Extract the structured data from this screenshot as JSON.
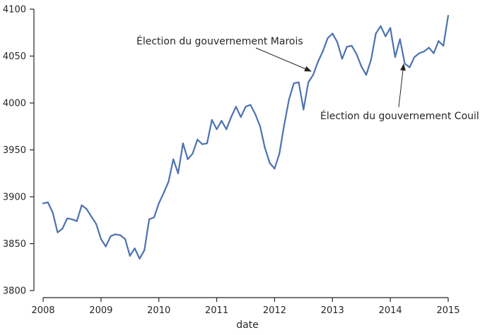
{
  "chart_data": {
    "type": "line",
    "xlabel": "date",
    "ylabel": "",
    "xlim": [
      2008.0,
      2015.0
    ],
    "ylim": [
      3800,
      4100
    ],
    "xticks": [
      2008,
      2009,
      2010,
      2011,
      2012,
      2013,
      2014,
      2015
    ],
    "xtick_labels": [
      "2008",
      "2009",
      "2010",
      "2011",
      "2012",
      "2013",
      "2014",
      "2015"
    ],
    "yticks": [
      3800,
      3850,
      3900,
      3950,
      4000,
      4050,
      4100
    ],
    "ytick_labels": [
      "3800",
      "3850",
      "3900",
      "3950",
      "4000",
      "4050",
      "4100"
    ],
    "grid": false,
    "series": [
      {
        "color": "#4c72b0",
        "x": [
          2008.0,
          2008.083,
          2008.167,
          2008.25,
          2008.333,
          2008.417,
          2008.5,
          2008.583,
          2008.667,
          2008.75,
          2008.833,
          2008.917,
          2009.0,
          2009.083,
          2009.167,
          2009.25,
          2009.333,
          2009.417,
          2009.5,
          2009.583,
          2009.667,
          2009.75,
          2009.833,
          2009.917,
          2010.0,
          2010.083,
          2010.167,
          2010.25,
          2010.333,
          2010.417,
          2010.5,
          2010.583,
          2010.667,
          2010.75,
          2010.833,
          2010.917,
          2011.0,
          2011.083,
          2011.167,
          2011.25,
          2011.333,
          2011.417,
          2011.5,
          2011.583,
          2011.667,
          2011.75,
          2011.833,
          2011.917,
          2012.0,
          2012.083,
          2012.167,
          2012.25,
          2012.333,
          2012.417,
          2012.5,
          2012.583,
          2012.667,
          2012.75,
          2012.833,
          2012.917,
          2013.0,
          2013.083,
          2013.167,
          2013.25,
          2013.333,
          2013.417,
          2013.5,
          2013.583,
          2013.667,
          2013.75,
          2013.833,
          2013.917,
          2014.0,
          2014.083,
          2014.167,
          2014.25,
          2014.333,
          2014.417,
          2014.5,
          2014.583,
          2014.667,
          2014.75,
          2014.833,
          2014.917,
          2015.0
        ],
        "y": [
          3893,
          3894,
          3883,
          3862,
          3866,
          3877,
          3876,
          3874,
          3891,
          3887,
          3879,
          3871,
          3855,
          3847,
          3858,
          3860,
          3859,
          3855,
          3837,
          3845,
          3834,
          3843,
          3876,
          3878,
          3893,
          3904,
          3916,
          3940,
          3925,
          3957,
          3940,
          3946,
          3961,
          3956,
          3957,
          3982,
          3972,
          3981,
          3972,
          3985,
          3996,
          3985,
          3996,
          3998,
          3988,
          3975,
          3952,
          3936,
          3930,
          3946,
          3977,
          4004,
          4021,
          4022,
          3993,
          4022,
          4030,
          4044,
          4055,
          4069,
          4074,
          4065,
          4047,
          4060,
          4061,
          4052,
          4039,
          4030,
          4046,
          4074,
          4082,
          4071,
          4080,
          4049,
          4068,
          4042,
          4038,
          4049,
          4053,
          4055,
          4059,
          4053,
          4066,
          4061,
          4093
        ]
      }
    ],
    "annotations": [
      {
        "text": "Élection du gouvernement Marois",
        "point": [
          2012.667,
          4032
        ],
        "text_anchor": "left"
      },
      {
        "text": "Élection du gouvernement Couillard",
        "point": [
          2014.25,
          4042
        ],
        "text_anchor": "left"
      }
    ]
  }
}
